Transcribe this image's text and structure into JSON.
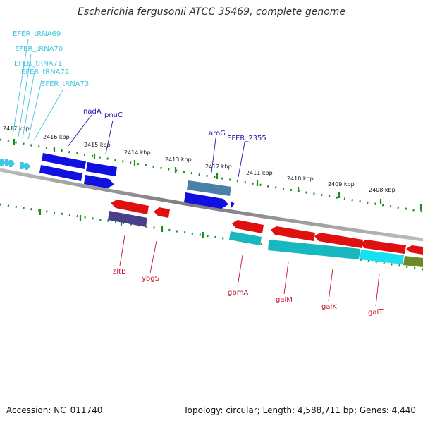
{
  "title": "Escherichia fergusonii ATCC 35469, complete genome",
  "footer": {
    "accession": "Accession: NC_011740",
    "summary": "Topology: circular; Length: 4,588,711 bp; Genes: 4,440"
  },
  "colors": {
    "trna_label": "#3fc6e0",
    "forward_label": "#1a1aa6",
    "reverse_label": "#c8102e",
    "tick_green": "#1e8c1e",
    "backbone": "#888888",
    "forward_gene": "#1010e0",
    "reverse_gene": "#e01010",
    "cyan_gene": "#18b8c0",
    "steel_gene": "#4a7fa8",
    "purple_gene": "#4a3f8a",
    "olive_gene": "#6a8a28"
  },
  "scale_labels": [
    "2417 kbp",
    "2416 kbp",
    "2415 kbp",
    "2414 kbp",
    "2413 kbp",
    "2412 kbp",
    "2411 kbp",
    "2410 kbp",
    "2409 kbp",
    "2408 kbp"
  ],
  "trna_labels": [
    "EFER_tRNA69",
    "EFER_tRNA70",
    "EFER_tRNA71",
    "EFER_tRNA72",
    "EFER_tRNA73"
  ],
  "forward_labels": [
    "nadA",
    "pnuC",
    "aroG",
    "EFER_2355"
  ],
  "reverse_labels": [
    "zitB",
    "ybgS",
    "gpmA",
    "galM",
    "galK",
    "galT"
  ]
}
